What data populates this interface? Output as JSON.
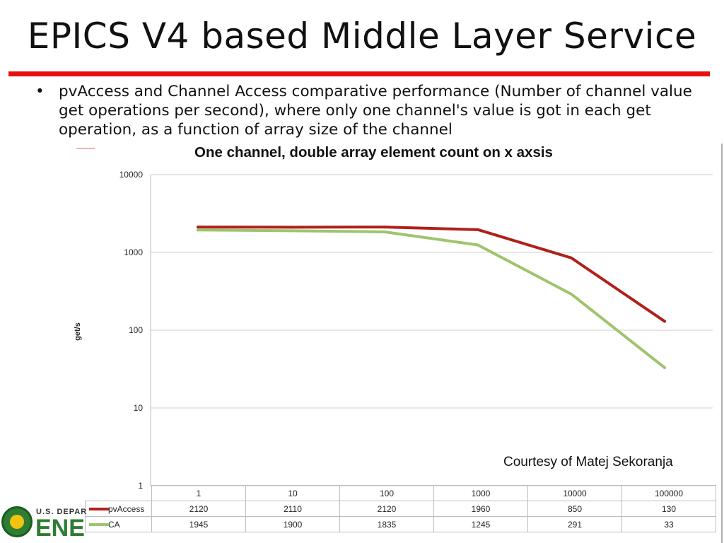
{
  "slide": {
    "title": "EPICS V4 based Middle Layer Service",
    "bullet": "pvAccess and Channel Access comparative performance (Number of channel value get operations per second), where only one channel's value is got in each get operation, as a function of array size of the channel",
    "courtesy": "Courtesy of Matej Sekoranja",
    "logo_text_top": "U.S. DEPAR",
    "logo_text_big": "ENE"
  },
  "colors": {
    "title_rule": "#e8100e",
    "pvaccess": "#b0201b",
    "ca": "#9fc46c"
  },
  "chart_data": {
    "type": "line",
    "title": "One channel, double array element count on x axsis",
    "xlabel": "",
    "ylabel": "get/s",
    "yscale": "log",
    "ylim": [
      1,
      10000
    ],
    "yticks": [
      "10000",
      "1000",
      "100",
      "10",
      "1"
    ],
    "categories": [
      "1",
      "10",
      "100",
      "1000",
      "10000",
      "100000"
    ],
    "series": [
      {
        "name": "pvAccess",
        "color": "#b0201b",
        "values": [
          2120,
          2110,
          2120,
          1960,
          850,
          130
        ]
      },
      {
        "name": "CA",
        "color": "#9fc46c",
        "values": [
          1945,
          1900,
          1835,
          1245,
          291,
          33
        ]
      }
    ],
    "grid": true,
    "legend": "table-bottom"
  }
}
